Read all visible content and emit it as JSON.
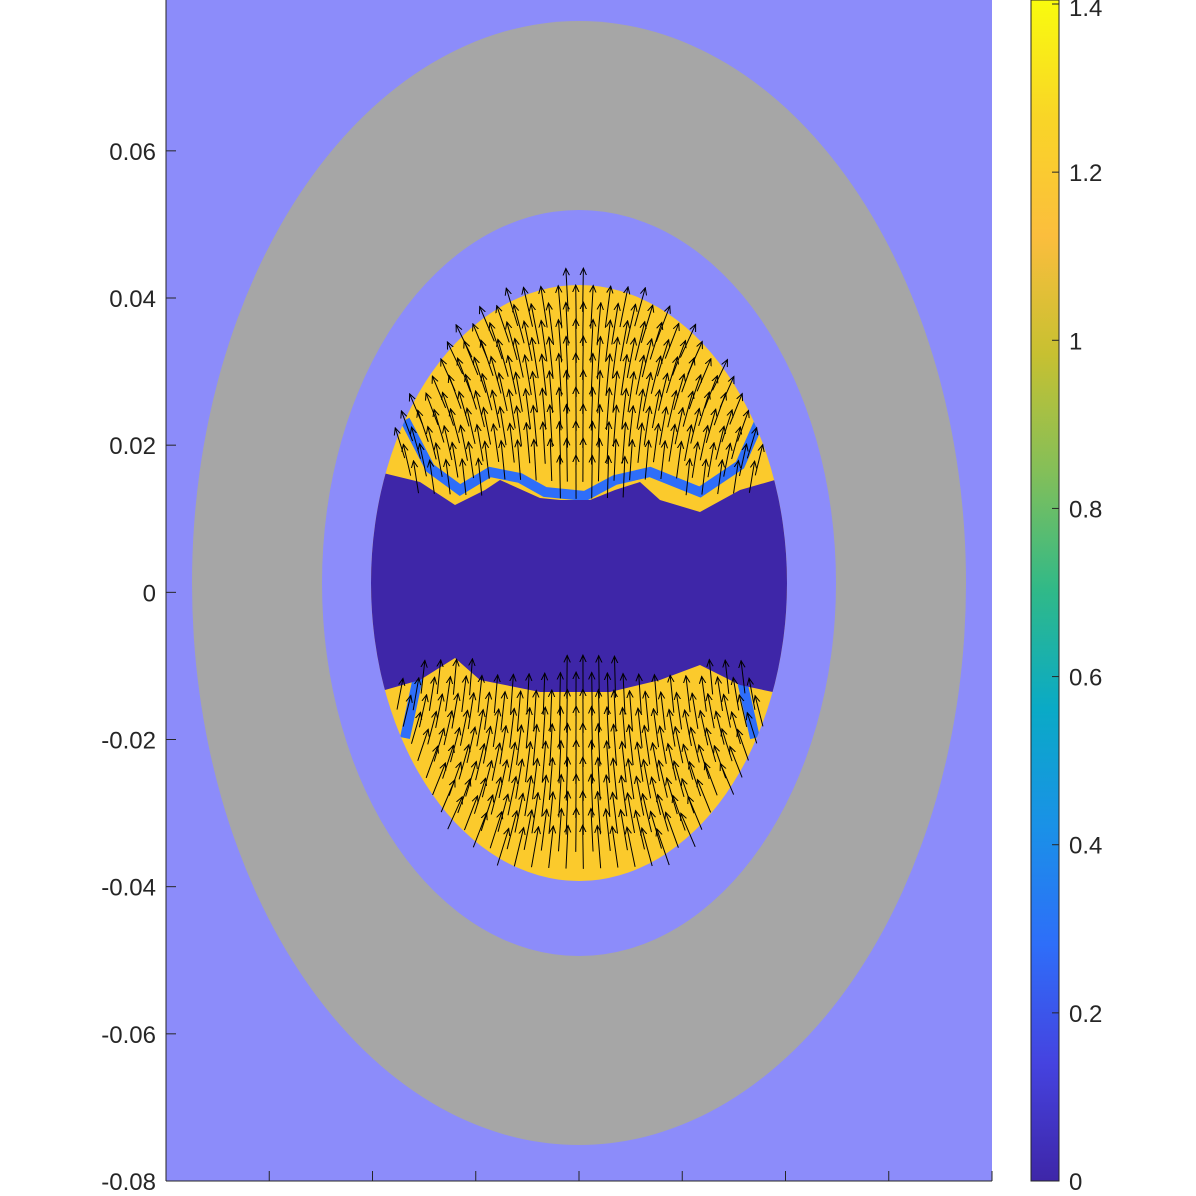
{
  "chart_data": {
    "type": "heatmap",
    "title": "",
    "xlabel": "",
    "ylabel": "",
    "ylim": [
      -0.08,
      0.08
    ],
    "y_ticks": [
      0.06,
      0.04,
      0.02,
      0,
      -0.02,
      -0.04,
      -0.06,
      -0.08
    ],
    "y_tick_labels": [
      "0.06",
      "0.04",
      "0.02",
      "0",
      "-0.02",
      "-0.04",
      "-0.06",
      "-0.08"
    ],
    "x_tick_count": 9,
    "colorbar": {
      "range": [
        0,
        1.4
      ],
      "ticks": [
        0,
        0.2,
        0.4,
        0.6,
        0.8,
        1,
        1.2,
        1.4
      ],
      "tick_labels": [
        "0",
        "0.2",
        "0.4",
        "0.6",
        "0.8",
        "1",
        "1.2",
        "1.4"
      ],
      "colormap": "parula",
      "stops": [
        "#3e26a8",
        "#4543e0",
        "#2e6ef9",
        "#1a91e7",
        "#0aaac6",
        "#30b988",
        "#83bf59",
        "#c7c031",
        "#fbbe3d",
        "#f9d527",
        "#f9fb0e"
      ]
    },
    "regions": {
      "air_color": "#8c8cfa",
      "ring_color": "#a6a6a6",
      "field_max_color": "#fbca2c",
      "field_min_color": "#3e26a8"
    },
    "quiver": {
      "color": "#000000",
      "upper_field_direction": "up, diverging outward near top",
      "lower_field_direction": "up, converging toward center"
    }
  }
}
